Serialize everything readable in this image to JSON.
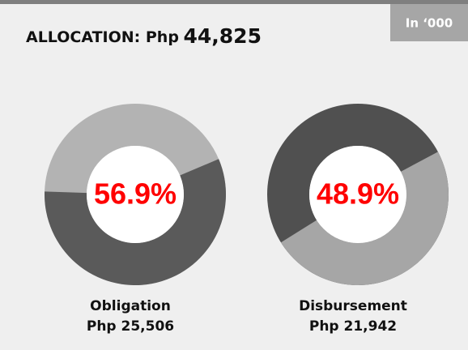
{
  "header": {
    "title_prefix": "ALLOCATION: Php",
    "title_amount": "44,825",
    "unit_note": "In ‘000"
  },
  "chart_data": [
    {
      "type": "donut",
      "label": "Obligation",
      "amount": "Php 25,506",
      "value": 56.9,
      "value_label": "56.9%",
      "color": "#5a5a5a",
      "track_color": "#b3b3b3"
    },
    {
      "type": "donut",
      "label": "Disbursement",
      "amount": "Php 21,942",
      "value": 48.9,
      "value_label": "48.9%",
      "color": "#a6a6a6",
      "track_color": "#505050"
    }
  ]
}
